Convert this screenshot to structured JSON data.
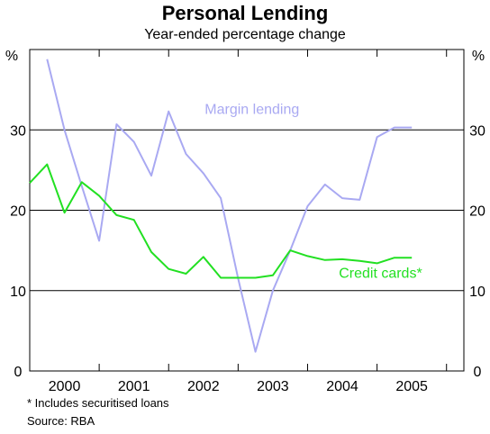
{
  "chart_data": {
    "type": "line",
    "title": "Personal Lending",
    "subtitle": "Year-ended percentage change",
    "ylabel_left": "%",
    "ylabel_right": "%",
    "ylim": [
      0,
      40
    ],
    "yticks": [
      0,
      10,
      20,
      30
    ],
    "xlim": [
      1999.5,
      2005.75
    ],
    "xticks": [
      {
        "label": "2000",
        "x": 2000
      },
      {
        "label": "2001",
        "x": 2001
      },
      {
        "label": "2002",
        "x": 2002
      },
      {
        "label": "2003",
        "x": 2003
      },
      {
        "label": "2004",
        "x": 2004
      },
      {
        "label": "2005",
        "x": 2005
      }
    ],
    "grid": true,
    "series": [
      {
        "name": "Margin lending",
        "color": "#a9a9f2",
        "x": [
          1999.75,
          2000.0,
          2000.25,
          2000.5,
          2000.75,
          2001.0,
          2001.25,
          2001.5,
          2001.75,
          2002.0,
          2002.25,
          2002.5,
          2002.75,
          2003.0,
          2003.25,
          2003.5,
          2003.75,
          2004.0,
          2004.25,
          2004.5,
          2004.75,
          2005.0
        ],
        "y": [
          38.8,
          30.0,
          23.0,
          16.2,
          30.7,
          28.5,
          24.3,
          32.3,
          27.0,
          24.6,
          21.5,
          11.5,
          2.4,
          10.0,
          15.0,
          20.5,
          23.2,
          21.5,
          21.3,
          29.1,
          30.3,
          30.3
        ]
      },
      {
        "name": "Credit cards*",
        "color": "#22e022",
        "x": [
          1999.5,
          1999.75,
          2000.0,
          2000.25,
          2000.5,
          2000.75,
          2001.0,
          2001.25,
          2001.5,
          2001.75,
          2002.0,
          2002.25,
          2002.5,
          2002.75,
          2003.0,
          2003.25,
          2003.5,
          2003.75,
          2004.0,
          2004.25,
          2004.5,
          2004.75,
          2005.0
        ],
        "y": [
          23.4,
          25.7,
          19.7,
          23.5,
          21.8,
          19.4,
          18.8,
          14.8,
          12.7,
          12.1,
          14.2,
          11.6,
          11.6,
          11.6,
          11.9,
          15.0,
          14.3,
          13.8,
          13.9,
          13.7,
          13.4,
          14.1,
          14.1
        ]
      }
    ],
    "annotations": [
      {
        "text": "Margin lending",
        "series": 0
      },
      {
        "text": "Credit cards*",
        "series": 1
      }
    ]
  },
  "footnote": "*   Includes securitised loans",
  "source": "Source: RBA"
}
